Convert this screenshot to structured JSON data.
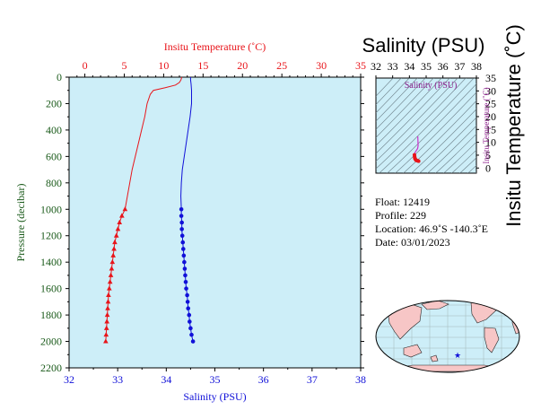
{
  "colors": {
    "temperature": "#e8141a",
    "salinity": "#1010d8",
    "pressure": "#1a5a1a",
    "plot_bg": "#cdeef8",
    "ts_curve": "#e8141a",
    "ts_curve_top": "#cc33cc",
    "land": "#f7c6c6",
    "ocean": "#cdeef8"
  },
  "chart_data": [
    {
      "type": "line",
      "name": "profile",
      "x_top": {
        "label": "Insitu Temperature (˚C)",
        "range": [
          -2,
          35
        ],
        "ticks": [
          0,
          5,
          10,
          15,
          20,
          25,
          30,
          35
        ]
      },
      "x_bottom": {
        "label": "Salinity (PSU)",
        "range": [
          32,
          38
        ],
        "ticks": [
          32,
          33,
          34,
          35,
          36,
          37,
          38
        ]
      },
      "y": {
        "label": "Pressure (decibar)",
        "range": [
          0,
          2200
        ],
        "inverted": true,
        "ticks": [
          0,
          200,
          400,
          600,
          800,
          1000,
          1200,
          1400,
          1600,
          1800,
          2000,
          2200
        ]
      },
      "temperature_line": {
        "pressure": [
          0,
          20,
          40,
          60,
          80,
          100,
          130,
          200,
          300,
          400,
          500,
          600,
          700,
          800,
          900,
          1000
        ],
        "temp": [
          12.3,
          12.2,
          12.0,
          11.5,
          10.2,
          8.7,
          8.3,
          7.9,
          7.6,
          7.2,
          6.8,
          6.4,
          6.0,
          5.7,
          5.4,
          5.1
        ]
      },
      "temperature_points": {
        "pressure": [
          1000,
          1050,
          1100,
          1150,
          1200,
          1250,
          1300,
          1350,
          1400,
          1450,
          1500,
          1550,
          1600,
          1650,
          1700,
          1750,
          1800,
          1850,
          1900,
          1950,
          2000
        ],
        "temp": [
          5.1,
          4.7,
          4.4,
          4.2,
          4.0,
          3.8,
          3.7,
          3.6,
          3.5,
          3.4,
          3.3,
          3.2,
          3.1,
          3.0,
          2.95,
          2.9,
          2.85,
          2.8,
          2.75,
          2.7,
          2.65
        ]
      },
      "salinity_line": {
        "pressure": [
          0,
          20,
          50,
          100,
          200,
          300,
          400,
          500,
          600,
          700,
          800,
          900,
          1000
        ],
        "sal": [
          34.5,
          34.5,
          34.51,
          34.52,
          34.52,
          34.49,
          34.45,
          34.41,
          34.37,
          34.33,
          34.31,
          34.3,
          34.31
        ]
      },
      "salinity_points": {
        "pressure": [
          1000,
          1050,
          1100,
          1150,
          1200,
          1250,
          1300,
          1350,
          1400,
          1450,
          1500,
          1550,
          1600,
          1650,
          1700,
          1750,
          1800,
          1850,
          1900,
          1950,
          2000
        ],
        "sal": [
          34.31,
          34.31,
          34.32,
          34.32,
          34.33,
          34.34,
          34.35,
          34.36,
          34.37,
          34.38,
          34.39,
          34.4,
          34.41,
          34.43,
          34.44,
          34.45,
          34.47,
          34.48,
          34.5,
          34.52,
          34.55
        ]
      }
    },
    {
      "type": "scatter",
      "name": "ts_diagram",
      "title": "Salinity (PSU)",
      "ylabel": "Insitu Temperature (˚C)",
      "overlapping_labels": [
        "Salinity (PSU)",
        "Insitu Temperature (˚C)"
      ],
      "x": {
        "range": [
          32,
          38
        ],
        "ticks": [
          32,
          33,
          34,
          35,
          36,
          37,
          38
        ]
      },
      "y": {
        "range": [
          -2,
          35
        ],
        "ticks": [
          0,
          5,
          10,
          15,
          20,
          25,
          30,
          35
        ]
      },
      "ts_points_sal": [
        34.3,
        34.31,
        34.32,
        34.33,
        34.35,
        34.38,
        34.41,
        34.45,
        34.5,
        34.55
      ],
      "ts_points_temp": [
        5.1,
        4.5,
        4.0,
        3.7,
        3.5,
        3.2,
        3.0,
        2.9,
        2.8,
        2.65
      ],
      "ts_line_sal": [
        34.5,
        34.52,
        34.49,
        34.41,
        34.33,
        34.31
      ],
      "ts_line_temp": [
        12.3,
        8.7,
        7.6,
        6.8,
        6.0,
        5.1
      ]
    }
  ],
  "info": {
    "float": "Float:  12419",
    "profile": "Profile:  229",
    "location": "Location:  46.9˚S  -140.3˚E",
    "date": "Date:  03/01/2023"
  },
  "map": {
    "marker": "★"
  }
}
